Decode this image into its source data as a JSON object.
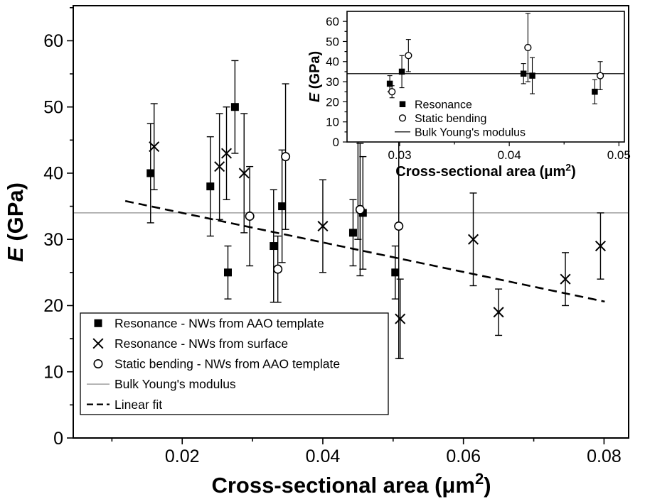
{
  "figure": {
    "background": "#ffffff",
    "marker_color": "#000000",
    "fit_color": "#000000"
  },
  "chart_data": [
    {
      "id": "main",
      "type": "scatter",
      "title": "",
      "xlabel_prefix": "Cross-sectional area (",
      "xlabel_unit": "μm",
      "xlabel_sup": "2",
      "xlabel_suffix": ")",
      "ylabel_italic": "E",
      "ylabel_rest": " (GPa)",
      "xlim": [
        0.0045,
        0.0835
      ],
      "ylim": [
        0,
        65.3
      ],
      "xticks": [
        {
          "v": 0.02,
          "label": "0.02"
        },
        {
          "v": 0.04,
          "label": "0.04"
        },
        {
          "v": 0.06,
          "label": "0.06"
        },
        {
          "v": 0.08,
          "label": "0.08"
        }
      ],
      "yticks": [
        {
          "v": 0,
          "label": "0"
        },
        {
          "v": 10,
          "label": "10"
        },
        {
          "v": 20,
          "label": "20"
        },
        {
          "v": 30,
          "label": "30"
        },
        {
          "v": 40,
          "label": "40"
        },
        {
          "v": 50,
          "label": "50"
        },
        {
          "v": 60,
          "label": "60"
        }
      ],
      "xminor": [
        0.01,
        0.03,
        0.05,
        0.07
      ],
      "yminor": [
        5,
        15,
        25,
        35,
        45,
        55,
        65
      ],
      "grid": false,
      "bulk_modulus_gpa": 34,
      "bulk_line_color": "#8c8c8c",
      "linear_fit": {
        "x1": 0.0119,
        "y1": 35.8,
        "x2": 0.0801,
        "y2": 20.6
      },
      "series": [
        {
          "name": "Resonance - NWs from AAO template",
          "marker": "filled-square",
          "points": [
            {
              "x": 0.0155,
              "y": 40.0,
              "e": 7.5
            },
            {
              "x": 0.024,
              "y": 38.0,
              "e": 7.5
            },
            {
              "x": 0.0265,
              "y": 25.0,
              "e": 4.0
            },
            {
              "x": 0.0275,
              "y": 50.0,
              "e": 7.0
            },
            {
              "x": 0.033,
              "y": 29.0,
              "e": 8.5
            },
            {
              "x": 0.0342,
              "y": 35.0,
              "e": 8.5
            },
            {
              "x": 0.0443,
              "y": 31.0,
              "e": 5.0
            },
            {
              "x": 0.0457,
              "y": 34.0,
              "e": 8.5
            },
            {
              "x": 0.0503,
              "y": 25.0,
              "e": 4.0
            }
          ]
        },
        {
          "name": "Resonance - NWs from surface",
          "marker": "x-cross",
          "points": [
            {
              "x": 0.016,
              "y": 44.0,
              "e": 6.5
            },
            {
              "x": 0.0253,
              "y": 41.0,
              "e": 8.0
            },
            {
              "x": 0.0263,
              "y": 43.0,
              "e": 7.0
            },
            {
              "x": 0.0288,
              "y": 40.0,
              "e": 9.0
            },
            {
              "x": 0.04,
              "y": 32.0,
              "e": 7.0
            },
            {
              "x": 0.051,
              "y": 18.0,
              "e": 6.0
            },
            {
              "x": 0.0614,
              "y": 30.0,
              "e": 7.0
            },
            {
              "x": 0.065,
              "y": 19.0,
              "e": 3.5
            },
            {
              "x": 0.0745,
              "y": 24.0,
              "e": 4.0
            },
            {
              "x": 0.0795,
              "y": 29.0,
              "e": 5.0
            }
          ]
        },
        {
          "name": "Static bending - NWs from AAO template",
          "marker": "open-circle",
          "points": [
            {
              "x": 0.0296,
              "y": 33.5,
              "e": 7.5
            },
            {
              "x": 0.0336,
              "y": 25.5,
              "e": 5.0
            },
            {
              "x": 0.0347,
              "y": 42.5,
              "e": 11.0
            },
            {
              "x": 0.045,
              "y": 46.5,
              "e": 16.5
            },
            {
              "x": 0.0453,
              "y": 34.5,
              "e": 10.0
            },
            {
              "x": 0.0508,
              "y": 32.0,
              "e": 20.0
            }
          ]
        }
      ],
      "legend": {
        "position": "bottom-left",
        "entries": [
          {
            "marker": "filled-square",
            "label": "Resonance - NWs from AAO template"
          },
          {
            "marker": "x-cross",
            "label": "Resonance - NWs from surface"
          },
          {
            "marker": "open-circle",
            "label": "Static bending - NWs from AAO template"
          },
          {
            "marker": "solid-line",
            "label": "Bulk Young's modulus"
          },
          {
            "marker": "dashed-line",
            "label": "Linear fit"
          }
        ]
      }
    },
    {
      "id": "inset",
      "type": "scatter",
      "title": "",
      "xlabel_prefix": "Cross-sectional area (",
      "xlabel_unit": "μm",
      "xlabel_sup": "2",
      "xlabel_suffix": ")",
      "ylabel_italic": "E",
      "ylabel_rest": " (GPa)",
      "xlim": [
        0.0252,
        0.0505
      ],
      "ylim": [
        0,
        65
      ],
      "xticks": [
        {
          "v": 0.03,
          "label": "0.03"
        },
        {
          "v": 0.04,
          "label": "0.04"
        },
        {
          "v": 0.05,
          "label": "0.05"
        }
      ],
      "yticks": [
        {
          "v": 0,
          "label": "0"
        },
        {
          "v": 10,
          "label": "10"
        },
        {
          "v": 20,
          "label": "20"
        },
        {
          "v": 30,
          "label": "30"
        },
        {
          "v": 40,
          "label": "40"
        },
        {
          "v": 50,
          "label": "50"
        },
        {
          "v": 60,
          "label": "60"
        }
      ],
      "xminor": [
        0.035,
        0.045
      ],
      "yminor": [
        5,
        15,
        25,
        35,
        45,
        55
      ],
      "grid": false,
      "bulk_modulus_gpa": 34,
      "bulk_line_color": "#2f2f2f",
      "linear_fit": null,
      "series": [
        {
          "name": "Resonance",
          "marker": "filled-square",
          "points": [
            {
              "x": 0.0291,
              "y": 29.0,
              "e": 4.0
            },
            {
              "x": 0.0302,
              "y": 35.0,
              "e": 8.0
            },
            {
              "x": 0.0413,
              "y": 34.0,
              "e": 5.0
            },
            {
              "x": 0.0421,
              "y": 33.0,
              "e": 9.0
            },
            {
              "x": 0.0478,
              "y": 25.0,
              "e": 6.0
            }
          ]
        },
        {
          "name": "Static bending",
          "marker": "open-circle",
          "points": [
            {
              "x": 0.0293,
              "y": 25.0,
              "e": 3.0
            },
            {
              "x": 0.0308,
              "y": 43.0,
              "e": 8.0
            },
            {
              "x": 0.0417,
              "y": 47.0,
              "e": 17.0
            },
            {
              "x": 0.0483,
              "y": 33.0,
              "e": 7.0
            }
          ]
        }
      ],
      "legend": {
        "position": "bottom-left",
        "entries": [
          {
            "marker": "filled-square",
            "label": "Resonance"
          },
          {
            "marker": "open-circle",
            "label": "Static bending"
          },
          {
            "marker": "solid-line",
            "label": "Bulk Young's modulus"
          }
        ]
      }
    }
  ]
}
